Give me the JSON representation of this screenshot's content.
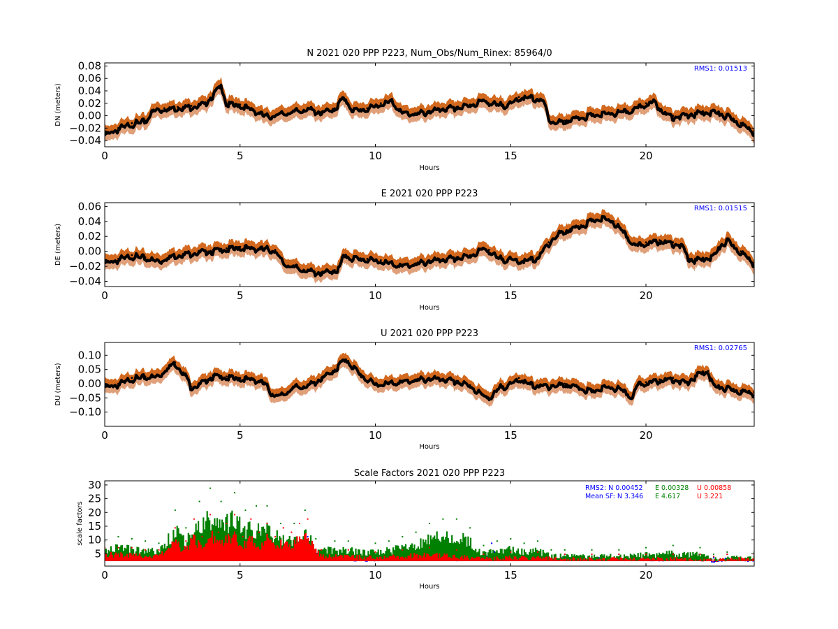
{
  "colors": {
    "upper_band": "#d2691e",
    "lower_band": "#e0a07a",
    "mean": "#000000",
    "rms_text": "#0000ff",
    "sf_N": "#0000ff",
    "sf_E": "#008000",
    "sf_U": "#ff0000"
  },
  "chart_data": [
    {
      "type": "line",
      "title": "N 2021 020 PPP  P223, Num_Obs/Num_Rinex: 85964/0",
      "xlabel": "Hours",
      "ylabel": "DN (meters)",
      "xlim": [
        0,
        24
      ],
      "ylim": [
        -0.05,
        0.085
      ],
      "xticks": [
        0,
        5,
        10,
        15,
        20
      ],
      "yticks": [
        -0.04,
        -0.02,
        0.0,
        0.02,
        0.04,
        0.06,
        0.08
      ],
      "ytick_labels": [
        "−0.04",
        "−0.02",
        "0.00",
        "0.02",
        "0.04",
        "0.06",
        "0.08"
      ],
      "annotation": "RMS1:  0.01513",
      "band_width": 0.012,
      "x": [
        0,
        0.5,
        1,
        1.5,
        1.8,
        2.2,
        2.7,
        3.2,
        3.7,
        4.1,
        4.3,
        4.5,
        5,
        5.5,
        6,
        6.5,
        7,
        7.5,
        8,
        8.5,
        8.8,
        9.2,
        9.7,
        10.2,
        10.6,
        11,
        11.5,
        12,
        12.5,
        13,
        13.5,
        14,
        14.5,
        15,
        15.3,
        15.8,
        16.2,
        16.5,
        17,
        17.5,
        18,
        18.5,
        19,
        19.5,
        20,
        20.3,
        20.7,
        21,
        21.5,
        22,
        22.5,
        23,
        23.5,
        24
      ],
      "y": [
        -0.03,
        -0.02,
        -0.012,
        -0.008,
        0.01,
        0.012,
        0.014,
        0.016,
        0.02,
        0.04,
        0.05,
        0.02,
        0.018,
        0.01,
        0.0,
        0.004,
        0.008,
        0.012,
        0.006,
        0.012,
        0.03,
        0.01,
        0.012,
        0.02,
        0.025,
        0.006,
        0.004,
        0.008,
        0.012,
        0.014,
        0.018,
        0.026,
        0.018,
        0.02,
        0.03,
        0.03,
        0.025,
        -0.01,
        -0.008,
        -0.002,
        0.002,
        0.004,
        0.006,
        0.01,
        0.02,
        0.024,
        0.005,
        0.0,
        0.002,
        0.006,
        0.008,
        0.0,
        -0.012,
        -0.025
      ]
    },
    {
      "type": "line",
      "title": "E 2021 020 PPP  P223",
      "xlabel": "Hours",
      "ylabel": "DE (meters)",
      "xlim": [
        0,
        24
      ],
      "ylim": [
        -0.047,
        0.065
      ],
      "xticks": [
        0,
        5,
        10,
        15,
        20
      ],
      "yticks": [
        -0.04,
        -0.02,
        0.0,
        0.02,
        0.04,
        0.06
      ],
      "ytick_labels": [
        "−0.04",
        "−0.02",
        "0.00",
        "0.02",
        "0.04",
        "0.06"
      ],
      "annotation": "RMS1:  0.01515",
      "band_width": 0.01,
      "x": [
        0,
        0.5,
        1,
        1.5,
        2,
        2.5,
        3,
        3.5,
        4,
        4.5,
        5,
        5.5,
        6,
        6.3,
        6.6,
        7,
        7.5,
        8,
        8.5,
        8.7,
        8.8,
        9.2,
        9.7,
        10.2,
        10.6,
        11,
        11.5,
        12,
        12.5,
        13,
        13.5,
        14,
        14.2,
        14.5,
        15,
        15.5,
        16,
        16.4,
        16.8,
        17.2,
        17.6,
        18,
        18.4,
        18.8,
        19.2,
        19.6,
        20,
        20.5,
        21,
        21.3,
        21.6,
        22,
        22.5,
        22.8,
        23,
        23.5,
        24
      ],
      "y": [
        -0.015,
        -0.01,
        -0.005,
        -0.008,
        -0.012,
        -0.005,
        -0.002,
        0.0,
        0.002,
        0.004,
        0.006,
        0.005,
        0.004,
        0.002,
        -0.015,
        -0.02,
        -0.025,
        -0.028,
        -0.025,
        -0.02,
        -0.005,
        -0.008,
        -0.01,
        -0.012,
        -0.015,
        -0.018,
        -0.016,
        -0.012,
        -0.01,
        -0.008,
        -0.005,
        0.005,
        0.002,
        -0.008,
        -0.01,
        -0.012,
        -0.008,
        0.012,
        0.025,
        0.03,
        0.035,
        0.042,
        0.045,
        0.04,
        0.025,
        0.008,
        0.012,
        0.015,
        0.012,
        0.01,
        -0.01,
        -0.01,
        -0.005,
        0.01,
        0.015,
        0.0,
        -0.015
      ]
    },
    {
      "type": "line",
      "title": "U 2021 020 PPP  P223",
      "xlabel": "Hours",
      "ylabel": "DU (meters)",
      "xlim": [
        0,
        24
      ],
      "ylim": [
        -0.15,
        0.145
      ],
      "xticks": [
        0,
        5,
        10,
        15,
        20
      ],
      "yticks": [
        -0.1,
        -0.05,
        0.0,
        0.05,
        0.1
      ],
      "ytick_labels": [
        "−0.10",
        "−0.05",
        "0.00",
        "0.05",
        "0.10"
      ],
      "annotation": "RMS1:  0.02765",
      "band_width": 0.025,
      "x": [
        0,
        0.5,
        1,
        1.5,
        2,
        2.4,
        2.6,
        3,
        3.2,
        3.5,
        4,
        4.5,
        5,
        5.5,
        5.9,
        6.2,
        6.5,
        7,
        7.5,
        8,
        8.5,
        8.8,
        9,
        9.5,
        10,
        10.5,
        11,
        11.5,
        12,
        12.5,
        13,
        13.5,
        14,
        14.3,
        14.6,
        15,
        15.3,
        15.7,
        16,
        16.5,
        17,
        17.5,
        18,
        18.5,
        19,
        19.5,
        19.7,
        20,
        20.5,
        21,
        21.5,
        22,
        22.3,
        22.5,
        23,
        23.5,
        24
      ],
      "y": [
        -0.01,
        0.0,
        0.02,
        0.025,
        0.03,
        0.065,
        0.075,
        0.03,
        -0.01,
        0.0,
        0.03,
        0.025,
        0.02,
        0.018,
        0.005,
        -0.035,
        -0.04,
        -0.01,
        -0.005,
        0.02,
        0.05,
        0.085,
        0.08,
        0.03,
        0.0,
        0.005,
        0.01,
        0.015,
        0.02,
        0.018,
        0.01,
        -0.005,
        -0.04,
        -0.045,
        -0.01,
        0.0,
        0.02,
        0.0,
        -0.005,
        -0.005,
        0.0,
        -0.01,
        -0.025,
        -0.01,
        -0.015,
        -0.045,
        0.0,
        0.005,
        0.015,
        0.02,
        0.005,
        0.04,
        0.045,
        -0.005,
        -0.015,
        -0.025,
        -0.03
      ]
    },
    {
      "type": "scatter",
      "title": "Scale Factors 2021 020 PPP  P223",
      "xlabel": "Hours",
      "ylabel": "scale factors",
      "xlim": [
        0,
        24
      ],
      "ylim": [
        0.5,
        31.5
      ],
      "xticks": [
        0,
        5,
        10,
        15,
        20
      ],
      "yticks": [
        5,
        10,
        15,
        20,
        25,
        30
      ],
      "ytick_labels": [
        "5",
        "10",
        "15",
        "20",
        "25",
        "30"
      ],
      "legend_text": {
        "rms2": [
          "RMS2: N  0.00452",
          "E  0.00328",
          "U  0.00858"
        ],
        "mean_sf": [
          "Mean SF: N   3.346",
          "E   4.617",
          "U   3.221"
        ]
      },
      "series": [
        {
          "name": "N",
          "color": "#0000ff",
          "x": [
            0,
            1,
            2,
            2.6,
            3,
            3.5,
            4,
            4.5,
            5,
            5.5,
            6,
            6.5,
            7,
            7.5,
            8,
            9,
            10,
            11,
            12,
            13,
            14,
            14.3,
            15,
            16,
            17,
            18,
            19,
            20,
            21,
            22,
            22.5,
            23,
            24
          ],
          "y": [
            3.5,
            3.5,
            3.2,
            5,
            4.5,
            6,
            4.5,
            6.5,
            7,
            5.5,
            7,
            5,
            6,
            7,
            3.2,
            3,
            2.5,
            3,
            3,
            3,
            3,
            5.5,
            3,
            3,
            3,
            3,
            3,
            2.8,
            3,
            3,
            2.2,
            3,
            2.6
          ]
        },
        {
          "name": "E",
          "color": "#008000",
          "x": [
            0,
            0.5,
            1,
            1.5,
            2,
            2.6,
            3,
            3.5,
            3.9,
            4.3,
            4.8,
            5.2,
            5.6,
            6,
            6.5,
            7,
            7.4,
            7.8,
            8.5,
            9,
            10,
            10.5,
            11,
            11.5,
            12,
            12.5,
            13,
            13.5,
            14,
            14.5,
            15,
            15.5,
            16,
            16.5,
            17,
            18,
            19,
            20,
            21,
            22,
            22.5,
            23,
            24
          ],
          "y": [
            6,
            7,
            6.5,
            6,
            5.5,
            13,
            9,
            15,
            18,
            15,
            17,
            13,
            14,
            14,
            10,
            10,
            13,
            6.5,
            6,
            6,
            5.5,
            6,
            7,
            8,
            10,
            11,
            11,
            9,
            5,
            6,
            6.5,
            5.5,
            6,
            4,
            4,
            4,
            4,
            4.5,
            5,
            4.5,
            3,
            3.5,
            3.5
          ]
        },
        {
          "name": "U",
          "color": "#ff0000",
          "x": [
            0,
            0.5,
            1,
            1.5,
            2,
            2.6,
            3,
            3.3,
            3.6,
            3.9,
            4.2,
            4.5,
            4.8,
            5.1,
            5.4,
            5.7,
            6,
            6.3,
            6.6,
            6.9,
            7.2,
            7.5,
            8,
            9,
            10,
            11,
            12,
            13,
            14,
            15,
            16,
            17,
            18,
            19,
            20,
            21,
            22,
            22.5,
            23,
            24
          ],
          "y": [
            4.5,
            4.5,
            4.5,
            4,
            4,
            9,
            6,
            11,
            7,
            12,
            8,
            10,
            12,
            7,
            11,
            8,
            10,
            7,
            9,
            8,
            10,
            11,
            4,
            4,
            3.5,
            4,
            4.5,
            4,
            3,
            3.5,
            3.5,
            3,
            3,
            3,
            3,
            3,
            3,
            2.5,
            3,
            3
          ]
        }
      ]
    }
  ]
}
